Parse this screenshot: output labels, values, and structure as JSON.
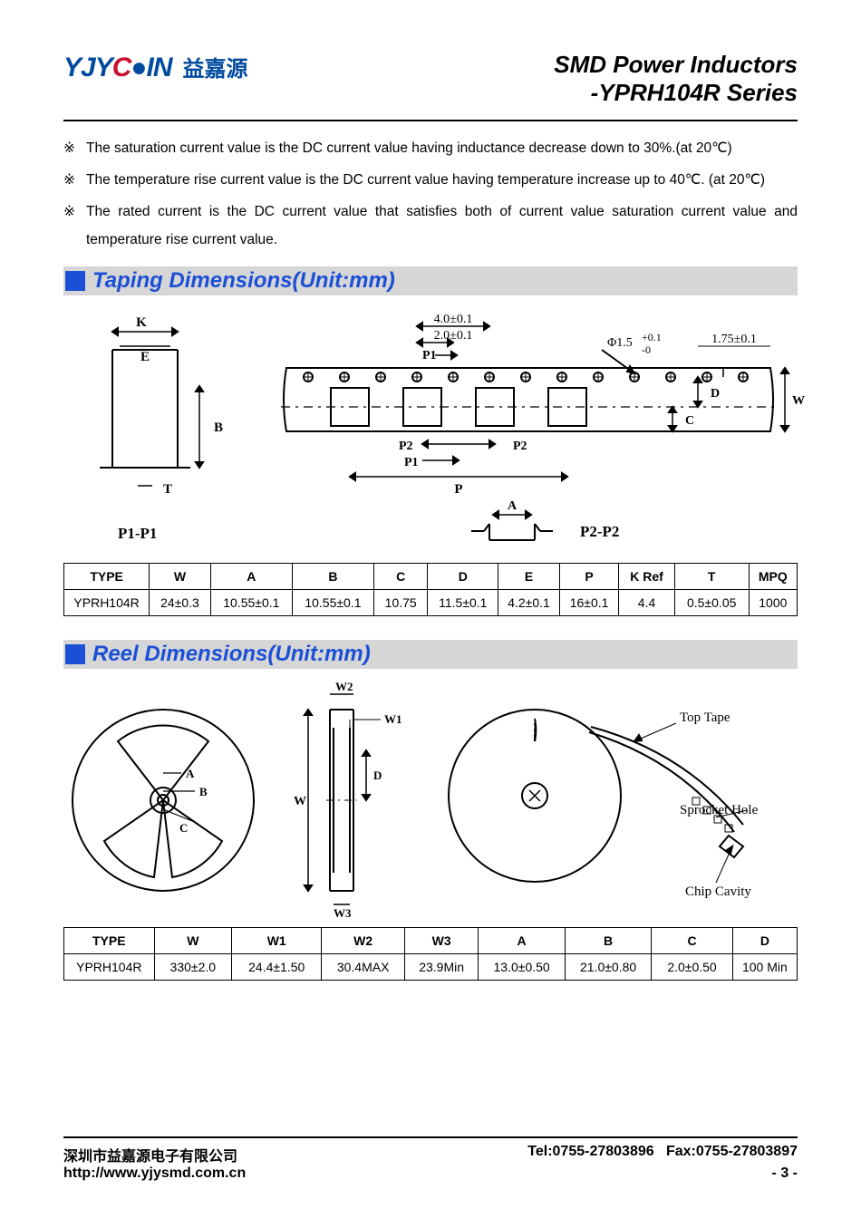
{
  "logo": {
    "part1": "YJY",
    "part2": "C",
    "part3": "IN",
    "cn": "益嘉源"
  },
  "title": {
    "line1": "SMD Power Inductors",
    "line2": "-YPRH104R Series"
  },
  "notes": [
    "The saturation current value is the DC current value having inductance decrease down to 30%.(at 20℃)",
    "The temperature rise current value is the DC current value having temperature increase up to 40℃. (at 20℃)",
    "The rated current is the DC current value that satisfies both of current value saturation current value and temperature rise current value."
  ],
  "note_mark": "※",
  "sections": {
    "taping": "Taping Dimensions(Unit:mm)",
    "reel": "Reel Dimensions(Unit:mm)"
  },
  "taping_diagram": {
    "K": "K",
    "E": "E",
    "B": "B",
    "T": "T",
    "p1p1": "P1-P1",
    "p2p2": "P2-P2",
    "d40": "4.0±0.1",
    "d20": "2.0±0.1",
    "P1": "P1",
    "P2": "P2",
    "P": "P",
    "phi": "Φ1.5",
    "phitol": "+0.1\n-0",
    "d175": "1.75±0.1",
    "D": "D",
    "C": "C",
    "W": "W",
    "A": "A"
  },
  "taping_table": {
    "columns": [
      "TYPE",
      "W",
      "A",
      "B",
      "C",
      "D",
      "E",
      "P",
      "K Ref",
      "T",
      "MPQ"
    ],
    "rows": [
      [
        "YPRH104R",
        "24±0.3",
        "10.55±0.1",
        "10.55±0.1",
        "10.75",
        "11.5±0.1",
        "4.2±0.1",
        "16±0.1",
        "4.4",
        "0.5±0.05",
        "1000"
      ]
    ],
    "col_widths": [
      "92",
      "66",
      "88",
      "88",
      "58",
      "76",
      "66",
      "64",
      "60",
      "80",
      "52"
    ]
  },
  "reel_diagram": {
    "A": "A",
    "B": "B",
    "C": "C",
    "W": "W",
    "W1": "W1",
    "W2": "W2",
    "W3": "W3",
    "D": "D",
    "top_tape": "Top Tape",
    "sprocket": "Sprocket Hole",
    "chip": "Chip Cavity"
  },
  "reel_table": {
    "columns": [
      "TYPE",
      "W",
      "W1",
      "W2",
      "W3",
      "A",
      "B",
      "C",
      "D"
    ],
    "rows": [
      [
        "YPRH104R",
        "330±2.0",
        "24.4±1.50",
        "30.4MAX",
        "23.9Min",
        "13.0±0.50",
        "21.0±0.80",
        "2.0±0.50",
        "100 Min"
      ]
    ],
    "col_widths": [
      "100",
      "86",
      "100",
      "92",
      "82",
      "96",
      "96",
      "90",
      "72"
    ]
  },
  "footer": {
    "company": "深圳市益嘉源电子有限公司",
    "tel": "Tel:0755-27803896",
    "fax": "Fax:0755-27803897",
    "url": "http://www.yjysmd.com.cn",
    "page": "- 3 -"
  },
  "colors": {
    "brand_blue": "#004a9f",
    "brand_red": "#c8102e",
    "accent_blue": "#1a4fd6",
    "section_bg": "#d6d6d6"
  }
}
